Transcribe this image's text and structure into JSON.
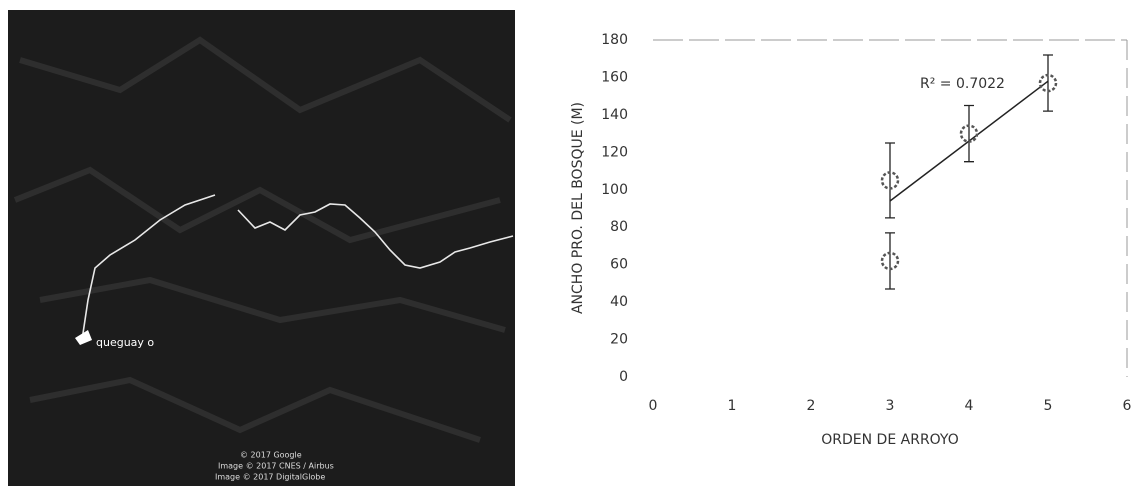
{
  "image": {
    "label": "queguay o",
    "credits": [
      "© 2017 Google",
      "Image © 2017 CNES / Airbus",
      "Image © 2017 DigitalGlobe"
    ]
  },
  "chart_data": {
    "type": "scatter",
    "xlabel": "ORDEN DE ARROYO",
    "ylabel": "ANCHO PRO. DEL BOSQUE (M)",
    "annotation": "R² = 0.7022",
    "x": [
      3,
      3,
      4,
      5
    ],
    "values": [
      62,
      105,
      130,
      157
    ],
    "errors": [
      15,
      20,
      15,
      15
    ],
    "color": "#555555",
    "trendline": {
      "x": [
        3,
        5
      ],
      "y": [
        94,
        158
      ]
    },
    "xlim": [
      0,
      6
    ],
    "xticks": [
      0,
      1,
      2,
      3,
      4,
      5,
      6
    ],
    "ylim": [
      0,
      180
    ],
    "yticks": [
      0,
      20,
      40,
      60,
      80,
      100,
      120,
      140,
      160,
      180
    ],
    "grid": false
  }
}
